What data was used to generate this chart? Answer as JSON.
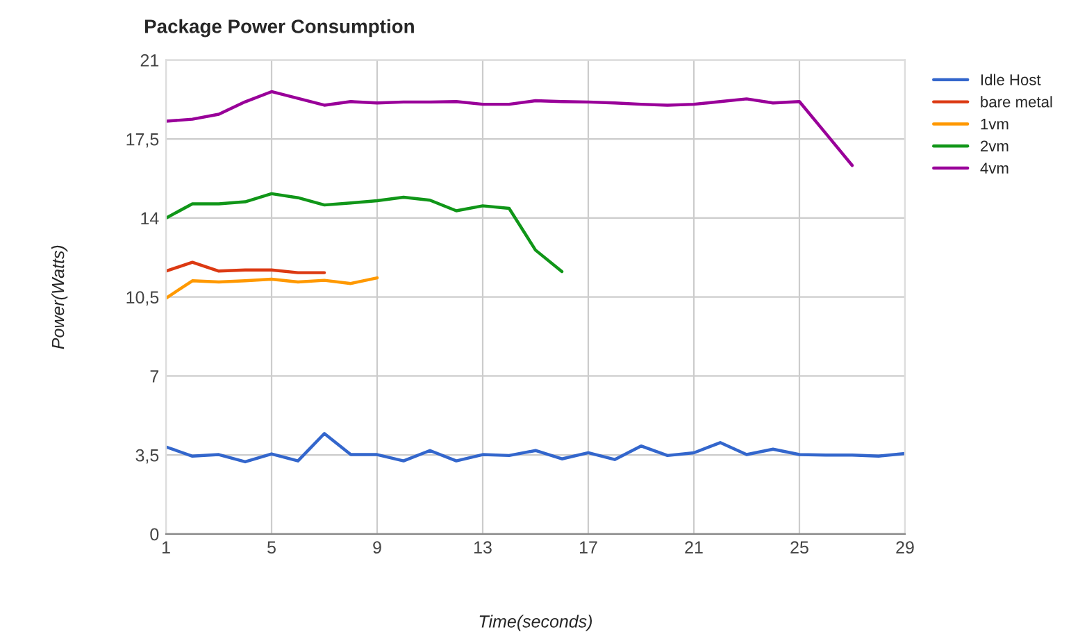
{
  "chart_data": {
    "type": "line",
    "title": "Package Power Consumption",
    "xlabel": "Time(seconds)",
    "ylabel": "Power(Watts)",
    "x": [
      1,
      2,
      3,
      4,
      5,
      6,
      7,
      8,
      9,
      10,
      11,
      12,
      13,
      14,
      15,
      16,
      17,
      18,
      19,
      20,
      21,
      22,
      23,
      24,
      25,
      26,
      27,
      28,
      29
    ],
    "series": [
      {
        "name": "Idle Host",
        "color": "#3366cc",
        "values": [
          3.86,
          3.45,
          3.52,
          3.2,
          3.55,
          3.24,
          4.45,
          3.52,
          3.52,
          3.24,
          3.7,
          3.24,
          3.52,
          3.48,
          3.7,
          3.33,
          3.6,
          3.3,
          3.9,
          3.48,
          3.6,
          4.05,
          3.52,
          3.76,
          3.52,
          3.5,
          3.5,
          3.45,
          3.57
        ]
      },
      {
        "name": "bare metal",
        "color": "#dc3912",
        "values": [
          11.65,
          12.04,
          11.65,
          11.7,
          11.7,
          11.58,
          11.58,
          null,
          null,
          null,
          null,
          null,
          null,
          null,
          null,
          null,
          null,
          null,
          null,
          null,
          null,
          null,
          null,
          null,
          null,
          null,
          null,
          null,
          null
        ]
      },
      {
        "name": "1vm",
        "color": "#ff9900",
        "values": [
          10.45,
          11.22,
          11.17,
          11.22,
          11.29,
          11.17,
          11.24,
          11.1,
          11.35,
          null,
          null,
          null,
          null,
          null,
          null,
          null,
          null,
          null,
          null,
          null,
          null,
          null,
          null,
          null,
          null,
          null,
          null,
          null,
          null
        ]
      },
      {
        "name": "2vm",
        "color": "#109618",
        "values": [
          14.0,
          14.63,
          14.63,
          14.72,
          15.08,
          14.9,
          14.58,
          14.67,
          14.77,
          14.92,
          14.79,
          14.32,
          14.54,
          14.43,
          12.58,
          11.63,
          null,
          null,
          null,
          null,
          null,
          null,
          null,
          null,
          null,
          null,
          null,
          null,
          null
        ]
      },
      {
        "name": "4vm",
        "color": "#990099",
        "values": [
          18.29,
          18.38,
          18.6,
          19.15,
          19.6,
          19.3,
          19.0,
          19.16,
          19.1,
          19.14,
          19.14,
          19.16,
          19.04,
          19.04,
          19.2,
          19.16,
          19.14,
          19.1,
          19.04,
          19.0,
          19.04,
          19.16,
          19.28,
          19.1,
          19.16,
          17.75,
          16.33,
          null,
          null
        ]
      }
    ],
    "xlim": [
      1,
      29
    ],
    "xticks": [
      1,
      5,
      9,
      13,
      17,
      21,
      25,
      29
    ],
    "ylim": [
      0,
      21
    ],
    "yticks": [
      0,
      {
        "value": 3.5,
        "label": "3,5"
      },
      7,
      {
        "value": 10.5,
        "label": "10,5"
      },
      14,
      {
        "value": 17.5,
        "label": "17,5"
      },
      21
    ],
    "grid": true,
    "legend": "right",
    "marker": "none",
    "line_style": "solid"
  }
}
